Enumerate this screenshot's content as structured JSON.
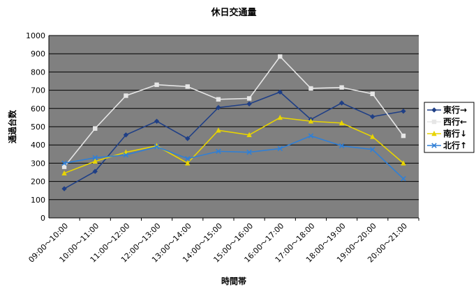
{
  "chart_data": {
    "type": "line",
    "title": "休日交通量",
    "xlabel": "時間帯",
    "ylabel": "通過台数",
    "ylim": [
      0,
      1000
    ],
    "yticks": [
      0,
      100,
      200,
      300,
      400,
      500,
      600,
      700,
      800,
      900,
      1000
    ],
    "grid": true,
    "legend_position": "right",
    "categories": [
      "09:00～10:00",
      "10:00～11:00",
      "11:00～12:00",
      "12:00～13:00",
      "13:00～14:00",
      "14:00～15:00",
      "15:00～16:00",
      "16:00～17:00",
      "17:00～18:00",
      "18:00～19:00",
      "19:00～20:00",
      "20:00～21:00"
    ],
    "series": [
      {
        "name": "東行→",
        "color": "#1f3f86",
        "marker": "diamond",
        "values": [
          160,
          255,
          455,
          530,
          435,
          605,
          625,
          690,
          540,
          630,
          555,
          585
        ]
      },
      {
        "name": "西行←",
        "color": "#e6e6e6",
        "marker": "square",
        "values": [
          280,
          490,
          670,
          730,
          720,
          650,
          655,
          885,
          710,
          715,
          680,
          450
        ]
      },
      {
        "name": "南行↓",
        "color": "#e8d400",
        "marker": "triangle",
        "values": [
          245,
          310,
          360,
          395,
          300,
          480,
          455,
          550,
          530,
          520,
          445,
          300
        ]
      },
      {
        "name": "北行↑",
        "color": "#2f7fd6",
        "marker": "x",
        "values": [
          300,
          330,
          345,
          390,
          325,
          365,
          360,
          380,
          450,
          395,
          375,
          215
        ]
      }
    ],
    "plot_background": "#808080",
    "gridline_color": "#000000"
  }
}
